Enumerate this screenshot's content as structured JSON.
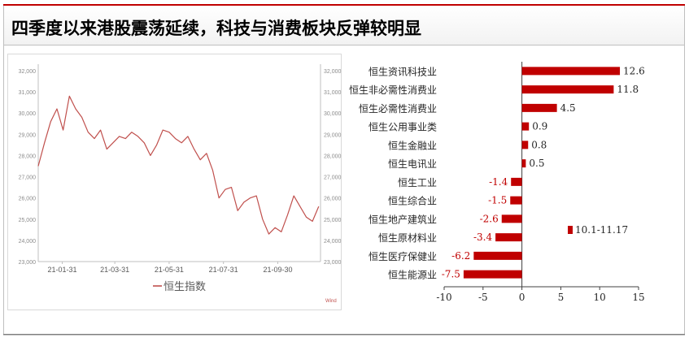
{
  "title": "四季度以来港股震荡延续，科技与消费板块反弹较明显",
  "colors": {
    "accent": "#c00000",
    "line": "#c0504d",
    "bar": "#c00000",
    "axis": "#7f7f7f"
  },
  "chart_data": [
    {
      "type": "line",
      "series": [
        {
          "name": "恒生指数",
          "x": [
            "2021-01-04",
            "2021-01-11",
            "2021-01-18",
            "2021-01-25",
            "2021-02-01",
            "2021-02-08",
            "2021-02-15",
            "2021-02-22",
            "2021-03-01",
            "2021-03-08",
            "2021-03-15",
            "2021-03-22",
            "2021-03-29",
            "2021-04-05",
            "2021-04-12",
            "2021-04-19",
            "2021-04-26",
            "2021-05-03",
            "2021-05-10",
            "2021-05-17",
            "2021-05-24",
            "2021-05-31",
            "2021-06-07",
            "2021-06-14",
            "2021-06-21",
            "2021-06-28",
            "2021-07-05",
            "2021-07-12",
            "2021-07-19",
            "2021-07-26",
            "2021-08-02",
            "2021-08-09",
            "2021-08-16",
            "2021-08-23",
            "2021-08-30",
            "2021-09-06",
            "2021-09-13",
            "2021-09-20",
            "2021-09-27",
            "2021-10-04",
            "2021-10-11",
            "2021-10-18",
            "2021-10-25",
            "2021-11-01",
            "2021-11-08",
            "2021-11-15"
          ],
          "values": [
            27500,
            28600,
            29600,
            30200,
            29200,
            30800,
            30200,
            29800,
            29100,
            28800,
            29200,
            28300,
            28600,
            28900,
            28800,
            29100,
            28900,
            28600,
            28000,
            28500,
            29200,
            29100,
            28800,
            28600,
            28900,
            28300,
            27800,
            28100,
            27300,
            26000,
            26400,
            26500,
            25400,
            25800,
            26000,
            26100,
            25000,
            24300,
            24600,
            24400,
            25200,
            26100,
            25600,
            25100,
            24900,
            25600
          ]
        }
      ],
      "xticks": [
        "21-01-31",
        "21-03-31",
        "21-05-31",
        "21-07-31",
        "21-09-30"
      ],
      "yticks_left": [
        "32,000",
        "31,000",
        "30,000",
        "29,000",
        "28,000",
        "27,000",
        "26,000",
        "25,000",
        "24,000",
        "23,000"
      ],
      "yticks_right": [
        "32,000",
        "31,000",
        "30,000",
        "29,000",
        "28,000",
        "27,000",
        "26,000",
        "25,000",
        "24,000",
        "23,000"
      ],
      "ylim": [
        23000,
        32000
      ],
      "legend": "恒生指数",
      "legend_position": "bottom",
      "source": "Wind"
    },
    {
      "type": "bar",
      "orientation": "horizontal",
      "categories": [
        "恒生资讯科技业",
        "恒生非必需性消费业",
        "恒生必需性消费业",
        "恒生公用事业类",
        "恒生金融业",
        "恒生电讯业",
        "恒生工业",
        "恒生综合业",
        "恒生地产建筑业",
        "恒生原材料业",
        "恒生医疗保健业",
        "恒生能源业"
      ],
      "series": [
        {
          "name": "10.1-11.17",
          "values": [
            12.6,
            11.8,
            4.5,
            0.9,
            0.8,
            0.5,
            -1.4,
            -1.5,
            -2.6,
            -3.4,
            -6.2,
            -7.5
          ]
        }
      ],
      "value_labels": [
        "12.6",
        "11.8",
        "4.5",
        "0.9",
        "0.8",
        "0.5",
        "-1.4",
        "-1.5",
        "-2.6",
        "-3.4",
        "-6.2",
        "-7.5"
      ],
      "xlim": [
        -10,
        15
      ],
      "xticks": [
        "-10",
        "-5",
        "0",
        "5",
        "10",
        "15"
      ],
      "legend": "10.1-11.17",
      "legend_position": "right"
    }
  ]
}
